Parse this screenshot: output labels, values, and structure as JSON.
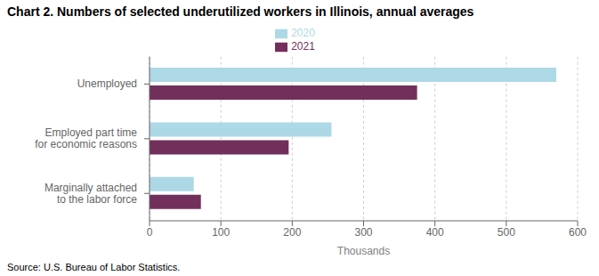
{
  "chart_data": {
    "type": "bar",
    "orientation": "horizontal",
    "title": "Chart 2.  Numbers of selected underutilized workers in Illinois, annual averages",
    "categories": [
      "Unemployed",
      "Employed part time\nfor economic reasons",
      "Marginally attached\nto the labor force"
    ],
    "series": [
      {
        "name": "2020",
        "color": "#add8e6",
        "values": [
          570,
          255,
          62
        ]
      },
      {
        "name": "2021",
        "color": "#722F5B",
        "values": [
          375,
          195,
          72
        ]
      }
    ],
    "xlabel": "Thousands",
    "xlim": [
      0,
      600
    ],
    "xticks": [
      0,
      100,
      200,
      300,
      400,
      500,
      600
    ],
    "grid": true,
    "legend": "top",
    "annotations": [
      "Source: U.S. Bureau of Labor Statistics."
    ]
  }
}
